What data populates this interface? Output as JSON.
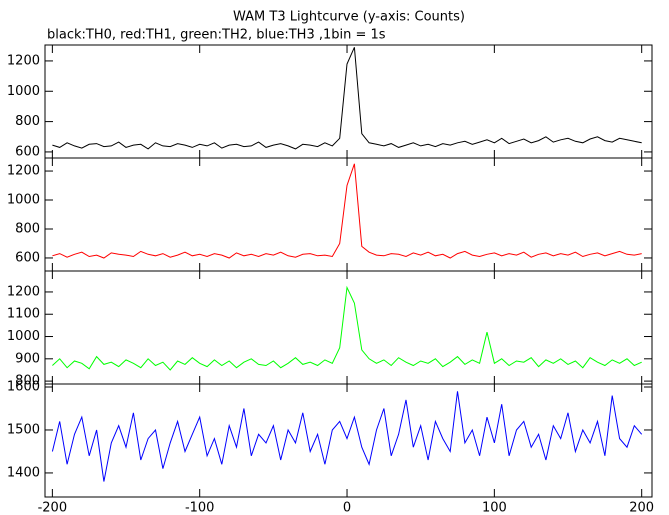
{
  "chart_data": [
    {
      "type": "line",
      "title": "WAM T3 Lightcurve (y-axis: Counts)",
      "subtitle": "black:TH0, red:TH1, green:TH2, blue:TH3 ,1bin = 1s",
      "x": [
        -200,
        -195,
        -190,
        -185,
        -180,
        -175,
        -170,
        -165,
        -160,
        -155,
        -150,
        -145,
        -140,
        -135,
        -130,
        -125,
        -120,
        -115,
        -110,
        -105,
        -100,
        -95,
        -90,
        -85,
        -80,
        -75,
        -70,
        -65,
        -60,
        -55,
        -50,
        -45,
        -40,
        -35,
        -30,
        -25,
        -20,
        -15,
        -10,
        -5,
        0,
        5,
        10,
        15,
        20,
        25,
        30,
        35,
        40,
        45,
        50,
        55,
        60,
        65,
        70,
        75,
        80,
        85,
        90,
        95,
        100,
        105,
        110,
        115,
        120,
        125,
        130,
        135,
        140,
        145,
        150,
        155,
        160,
        165,
        170,
        175,
        180,
        185,
        190,
        195,
        200
      ],
      "values": [
        645,
        630,
        660,
        640,
        625,
        650,
        655,
        635,
        640,
        665,
        630,
        645,
        650,
        620,
        660,
        640,
        635,
        655,
        645,
        630,
        650,
        640,
        660,
        625,
        645,
        650,
        635,
        640,
        665,
        630,
        645,
        655,
        640,
        620,
        650,
        645,
        635,
        660,
        640,
        690,
        1180,
        1290,
        720,
        660,
        650,
        640,
        655,
        630,
        645,
        660,
        640,
        650,
        635,
        655,
        645,
        660,
        670,
        650,
        665,
        680,
        660,
        690,
        655,
        670,
        685,
        660,
        675,
        700,
        665,
        680,
        690,
        670,
        660,
        685,
        700,
        675,
        665,
        690,
        680,
        670,
        660
      ],
      "color": "#000000",
      "xlim": [
        -205,
        207
      ],
      "ylim": [
        560,
        1305
      ],
      "yticks": [
        600,
        800,
        1000,
        1200
      ]
    },
    {
      "type": "line",
      "x": [
        -200,
        -195,
        -190,
        -185,
        -180,
        -175,
        -170,
        -165,
        -160,
        -155,
        -150,
        -145,
        -140,
        -135,
        -130,
        -125,
        -120,
        -115,
        -110,
        -105,
        -100,
        -95,
        -90,
        -85,
        -80,
        -75,
        -70,
        -65,
        -60,
        -55,
        -50,
        -45,
        -40,
        -35,
        -30,
        -25,
        -20,
        -15,
        -10,
        -5,
        0,
        5,
        10,
        15,
        20,
        25,
        30,
        35,
        40,
        45,
        50,
        55,
        60,
        65,
        70,
        75,
        80,
        85,
        90,
        95,
        100,
        105,
        110,
        115,
        120,
        125,
        130,
        135,
        140,
        145,
        150,
        155,
        160,
        165,
        170,
        175,
        180,
        185,
        190,
        195,
        200
      ],
      "values": [
        615,
        630,
        605,
        625,
        640,
        610,
        620,
        600,
        635,
        625,
        620,
        610,
        645,
        625,
        615,
        630,
        605,
        620,
        640,
        615,
        625,
        610,
        630,
        620,
        600,
        635,
        615,
        625,
        610,
        630,
        620,
        640,
        615,
        605,
        625,
        630,
        615,
        620,
        610,
        700,
        1100,
        1250,
        680,
        640,
        620,
        615,
        630,
        625,
        610,
        635,
        620,
        640,
        615,
        625,
        600,
        630,
        645,
        620,
        610,
        625,
        635,
        615,
        630,
        620,
        640,
        605,
        625,
        635,
        615,
        630,
        620,
        640,
        610,
        625,
        635,
        615,
        630,
        645,
        625,
        620,
        630
      ],
      "color": "#ff0000",
      "xlim": [
        -205,
        207
      ],
      "ylim": [
        510,
        1290
      ],
      "yticks": [
        600,
        800,
        1000,
        1200
      ]
    },
    {
      "type": "line",
      "x": [
        -200,
        -195,
        -190,
        -185,
        -180,
        -175,
        -170,
        -165,
        -160,
        -155,
        -150,
        -145,
        -140,
        -135,
        -130,
        -125,
        -120,
        -115,
        -110,
        -105,
        -100,
        -95,
        -90,
        -85,
        -80,
        -75,
        -70,
        -65,
        -60,
        -55,
        -50,
        -45,
        -40,
        -35,
        -30,
        -25,
        -20,
        -15,
        -10,
        -5,
        0,
        5,
        10,
        15,
        20,
        25,
        30,
        35,
        40,
        45,
        50,
        55,
        60,
        65,
        70,
        75,
        80,
        85,
        90,
        95,
        100,
        105,
        110,
        115,
        120,
        125,
        130,
        135,
        140,
        145,
        150,
        155,
        160,
        165,
        170,
        175,
        180,
        185,
        190,
        195,
        200
      ],
      "values": [
        870,
        900,
        860,
        890,
        880,
        855,
        910,
        875,
        885,
        865,
        895,
        880,
        860,
        900,
        870,
        885,
        850,
        890,
        875,
        905,
        880,
        865,
        895,
        870,
        890,
        860,
        885,
        900,
        875,
        870,
        890,
        860,
        880,
        905,
        875,
        885,
        870,
        895,
        880,
        950,
        1220,
        1150,
        940,
        900,
        880,
        895,
        870,
        905,
        885,
        870,
        890,
        880,
        900,
        865,
        885,
        910,
        875,
        895,
        880,
        1020,
        880,
        900,
        870,
        890,
        885,
        905,
        865,
        895,
        880,
        900,
        875,
        890,
        860,
        905,
        885,
        870,
        895,
        880,
        900,
        870,
        885
      ],
      "color": "#00ff00",
      "xlim": [
        -205,
        207
      ],
      "ylim": [
        787,
        1294
      ],
      "yticks": [
        800,
        900,
        1000,
        1100,
        1200
      ]
    },
    {
      "type": "line",
      "x": [
        -200,
        -195,
        -190,
        -185,
        -180,
        -175,
        -170,
        -165,
        -160,
        -155,
        -150,
        -145,
        -140,
        -135,
        -130,
        -125,
        -120,
        -115,
        -110,
        -105,
        -100,
        -95,
        -90,
        -85,
        -80,
        -75,
        -70,
        -65,
        -60,
        -55,
        -50,
        -45,
        -40,
        -35,
        -30,
        -25,
        -20,
        -15,
        -10,
        -5,
        0,
        5,
        10,
        15,
        20,
        25,
        30,
        35,
        40,
        45,
        50,
        55,
        60,
        65,
        70,
        75,
        80,
        85,
        90,
        95,
        100,
        105,
        110,
        115,
        120,
        125,
        130,
        135,
        140,
        145,
        150,
        155,
        160,
        165,
        170,
        175,
        180,
        185,
        190,
        195,
        200
      ],
      "values": [
        1450,
        1520,
        1420,
        1490,
        1530,
        1440,
        1500,
        1380,
        1470,
        1510,
        1460,
        1540,
        1430,
        1480,
        1500,
        1410,
        1470,
        1520,
        1450,
        1490,
        1530,
        1440,
        1480,
        1420,
        1510,
        1460,
        1550,
        1440,
        1490,
        1470,
        1510,
        1430,
        1500,
        1470,
        1540,
        1450,
        1490,
        1420,
        1500,
        1520,
        1480,
        1530,
        1460,
        1420,
        1500,
        1550,
        1440,
        1490,
        1570,
        1460,
        1510,
        1430,
        1520,
        1480,
        1450,
        1590,
        1470,
        1500,
        1440,
        1530,
        1470,
        1560,
        1440,
        1500,
        1520,
        1460,
        1490,
        1430,
        1510,
        1480,
        1540,
        1450,
        1500,
        1470,
        1520,
        1440,
        1580,
        1480,
        1460,
        1510,
        1490
      ],
      "color": "#0000ff",
      "xlim": [
        -205,
        207
      ],
      "ylim": [
        1344,
        1607
      ],
      "yticks": [
        1400,
        1500,
        1600
      ],
      "xticks": [
        -200,
        -100,
        0,
        100,
        200
      ]
    }
  ]
}
